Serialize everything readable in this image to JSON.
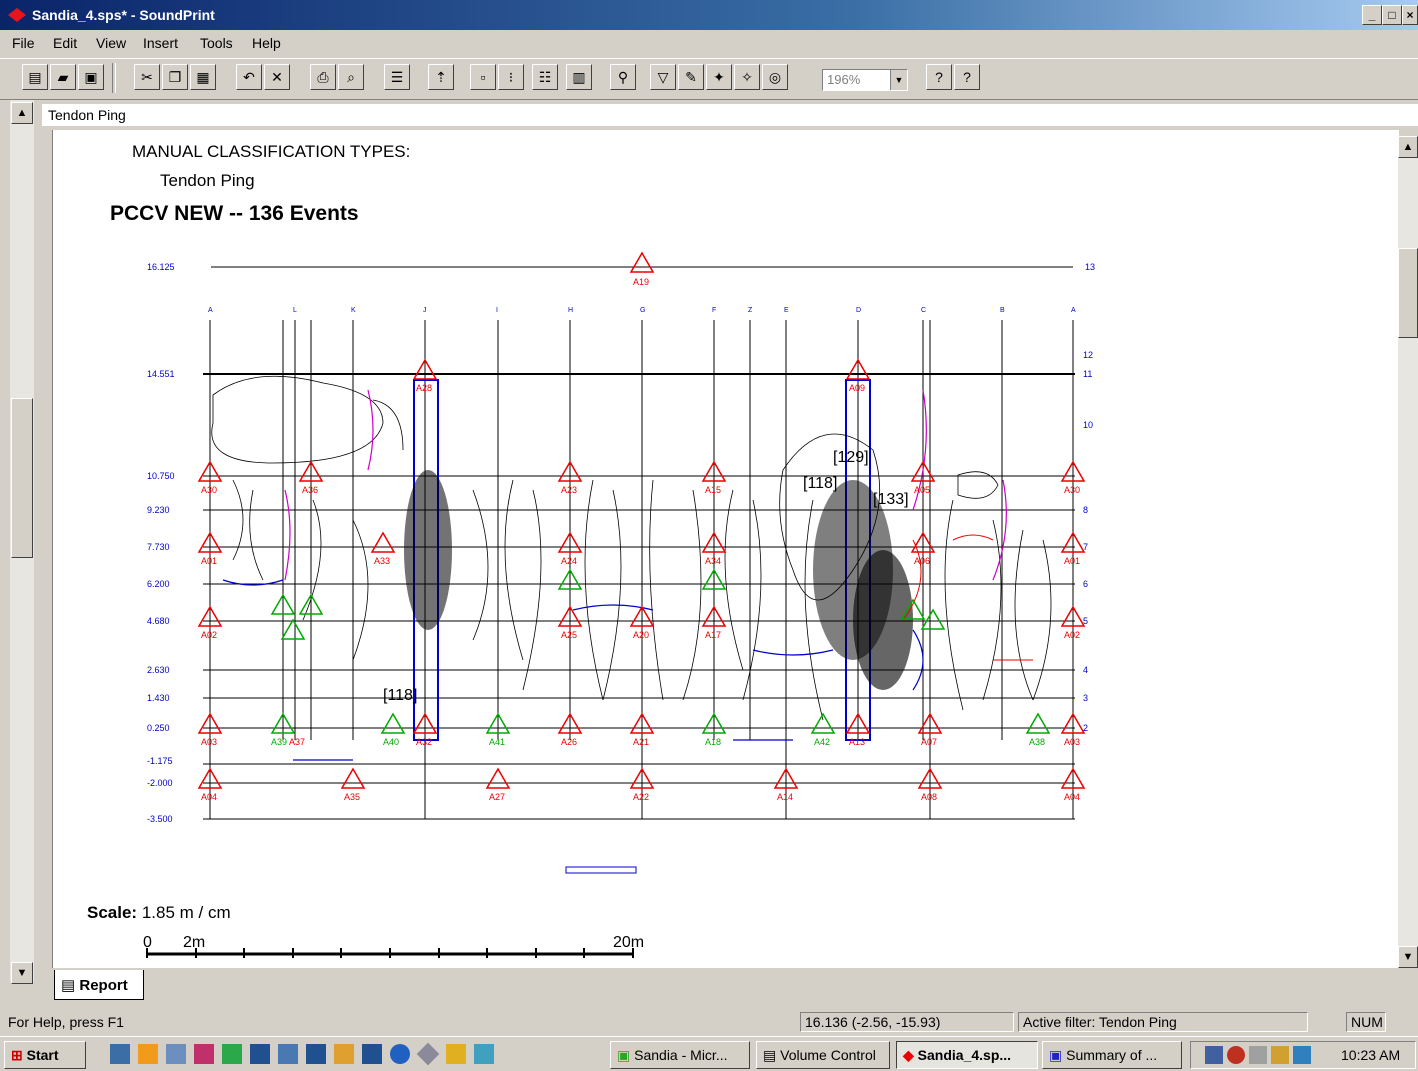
{
  "window": {
    "title": "Sandia_4.sps* - SoundPrint",
    "controls": [
      "_",
      "□",
      "×"
    ]
  },
  "menu": [
    "File",
    "Edit",
    "View",
    "Insert",
    "Tools",
    "Help"
  ],
  "toolbar": {
    "zoom": "196%",
    "help_glyph": "?",
    "context_help_glyph": "?"
  },
  "document": {
    "tab_title": "Tendon Ping",
    "report_tab": "Report",
    "heading": "MANUAL CLASSIFICATION TYPES:",
    "type": "Tendon Ping",
    "title": "PCCV NEW -- 136 Events",
    "scale_label": "Scale:",
    "scale_value": "1.85 m / cm",
    "scale_marks": [
      "0",
      "2m",
      "20m"
    ]
  },
  "plot": {
    "left_labels": [
      "16.125",
      "14.551",
      "10.750",
      "9.230",
      "7.730",
      "6.200",
      "4.680",
      "2.630",
      "1.430",
      "0.250",
      "-1.175",
      "-2.000",
      "-3.500"
    ],
    "right_labels": [
      "13",
      "12",
      "11",
      "10",
      "8",
      "7",
      "6",
      "5",
      "4",
      "3",
      "2"
    ],
    "top_sensor": "A19",
    "row_11_sensors": [
      "A28",
      "A09"
    ],
    "row_9_sensors": [
      "A30",
      "A36",
      "A23",
      "A15",
      "A05",
      "A30"
    ],
    "row_7_sensors": [
      "A01",
      "A33",
      "A24",
      "A34",
      "A06",
      "A01"
    ],
    "row_5_sensors": [
      "A02",
      "A25",
      "A20",
      "A17",
      "A02"
    ],
    "row_2_sensors": [
      "A03",
      "A39",
      "A37",
      "A40",
      "A32",
      "A41",
      "A26",
      "A21",
      "A18",
      "A42",
      "A13",
      "A07",
      "A38",
      "A03"
    ],
    "bottom_sensors": [
      "A04",
      "A35",
      "A27",
      "A22",
      "A14",
      "A08",
      "A04"
    ],
    "column_letters": [
      "A",
      "L",
      "K",
      "J",
      "I",
      "H",
      "G",
      "F",
      "Z",
      "E",
      "D",
      "C",
      "B",
      "A"
    ],
    "event_labels": [
      "[129]",
      "[118]",
      "[133]",
      "[118]"
    ]
  },
  "status": {
    "help": "For Help, press F1",
    "coords": "16.136 (-2.56, -15.93)",
    "filter": "Active filter: Tendon Ping",
    "num": "NUM"
  },
  "taskbar": {
    "start": "Start",
    "tasks": [
      "Sandia - Micr...",
      "Volume Control",
      "Sandia_4.sp...",
      "Summary of ..."
    ],
    "clock": "10:23 AM"
  }
}
